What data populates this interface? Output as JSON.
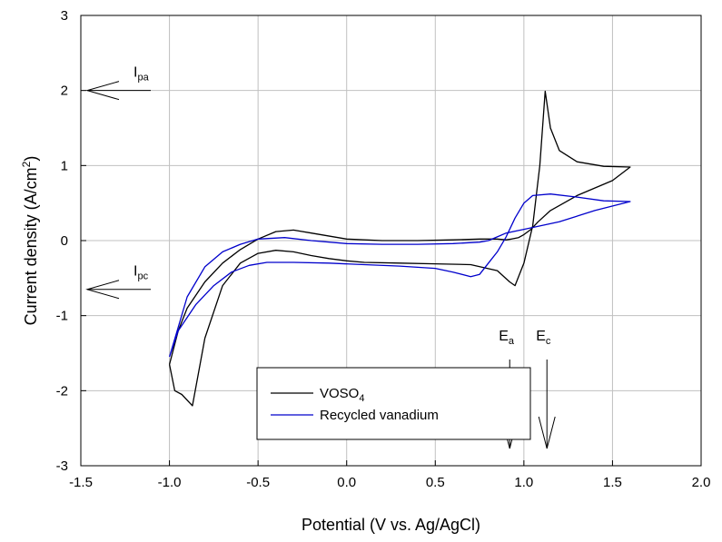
{
  "chart_data": {
    "type": "line",
    "title": "",
    "xlabel": "Potential (V vs. Ag/AgCl)",
    "ylabel": {
      "main": "Current density (A/cm",
      "sup": "2",
      "end": ")"
    },
    "xlim": [
      -1.5,
      2.0
    ],
    "ylim": [
      -3,
      3
    ],
    "xticks": [
      -1.5,
      -1.0,
      -0.5,
      0.0,
      0.5,
      1.0,
      1.5,
      2.0
    ],
    "xtick_labels": [
      "-1.5",
      "-1.0",
      "-0.5",
      "0.0",
      "0.5",
      "1.0",
      "1.5",
      "2.0"
    ],
    "yticks": [
      -3,
      -2,
      -1,
      0,
      1,
      2,
      3
    ],
    "ytick_labels": [
      "-3",
      "-2",
      "-1",
      "0",
      "1",
      "2",
      "3"
    ],
    "grid": true,
    "legend_position": "bottom-center",
    "series": [
      {
        "name": "VOSO4",
        "legend_main": "VOSO",
        "legend_sub": "4",
        "color": "#000000",
        "x": [
          -1.0,
          -0.97,
          -0.93,
          -0.87,
          -0.8,
          -0.7,
          -0.6,
          -0.5,
          -0.4,
          -0.3,
          -0.2,
          -0.1,
          0.0,
          0.1,
          0.3,
          0.5,
          0.7,
          0.85,
          0.92,
          0.95,
          1.0,
          1.05,
          1.09,
          1.12,
          1.15,
          1.2,
          1.3,
          1.45,
          1.6,
          1.6,
          1.5,
          1.3,
          1.15,
          1.08,
          1.04,
          1.0,
          0.97,
          0.93,
          0.9,
          0.85,
          0.75,
          0.6,
          0.4,
          0.2,
          0.0,
          -0.2,
          -0.3,
          -0.4,
          -0.5,
          -0.6,
          -0.7,
          -0.8,
          -0.9,
          -0.95,
          -1.0
        ],
        "y": [
          -1.65,
          -2.0,
          -2.05,
          -2.2,
          -1.3,
          -0.6,
          -0.3,
          -0.17,
          -0.13,
          -0.15,
          -0.2,
          -0.24,
          -0.27,
          -0.29,
          -0.3,
          -0.31,
          -0.32,
          -0.4,
          -0.55,
          -0.6,
          -0.3,
          0.2,
          1.0,
          1.99,
          1.5,
          1.2,
          1.05,
          0.99,
          0.98,
          0.98,
          0.8,
          0.6,
          0.4,
          0.25,
          0.15,
          0.08,
          0.04,
          0.02,
          0.01,
          0.02,
          0.02,
          0.01,
          0.0,
          0.0,
          0.02,
          0.1,
          0.14,
          0.12,
          0.02,
          -0.12,
          -0.3,
          -0.55,
          -0.9,
          -1.2,
          -1.65
        ]
      },
      {
        "name": "Recycled vanadium",
        "legend_main": "Recycled vanadium",
        "legend_sub": "",
        "color": "#0000cc",
        "x": [
          -1.0,
          -0.95,
          -0.85,
          -0.75,
          -0.65,
          -0.55,
          -0.45,
          -0.3,
          -0.1,
          0.1,
          0.3,
          0.5,
          0.6,
          0.7,
          0.75,
          0.8,
          0.85,
          0.9,
          0.95,
          1.0,
          1.05,
          1.15,
          1.3,
          1.45,
          1.6,
          1.6,
          1.4,
          1.2,
          1.0,
          0.9,
          0.85,
          0.8,
          0.75,
          0.6,
          0.4,
          0.2,
          0.0,
          -0.2,
          -0.35,
          -0.5,
          -0.6,
          -0.7,
          -0.8,
          -0.9,
          -1.0
        ],
        "y": [
          -1.55,
          -1.2,
          -0.85,
          -0.6,
          -0.42,
          -0.33,
          -0.29,
          -0.29,
          -0.3,
          -0.32,
          -0.34,
          -0.37,
          -0.42,
          -0.48,
          -0.45,
          -0.3,
          -0.15,
          0.05,
          0.3,
          0.5,
          0.6,
          0.62,
          0.58,
          0.53,
          0.52,
          0.52,
          0.4,
          0.25,
          0.15,
          0.1,
          0.05,
          0.0,
          -0.02,
          -0.04,
          -0.05,
          -0.05,
          -0.04,
          0.0,
          0.04,
          0.02,
          -0.05,
          -0.15,
          -0.35,
          -0.75,
          -1.55
        ]
      }
    ],
    "annotations": [
      {
        "main": "I",
        "sub": "pa",
        "y": 2.0,
        "direction": "left"
      },
      {
        "main": "I",
        "sub": "pc",
        "y": -0.65,
        "direction": "left"
      },
      {
        "main": "E",
        "sub": "a",
        "x": 0.92,
        "direction": "down"
      },
      {
        "main": "E",
        "sub": "c",
        "x": 1.13,
        "direction": "down"
      }
    ]
  }
}
